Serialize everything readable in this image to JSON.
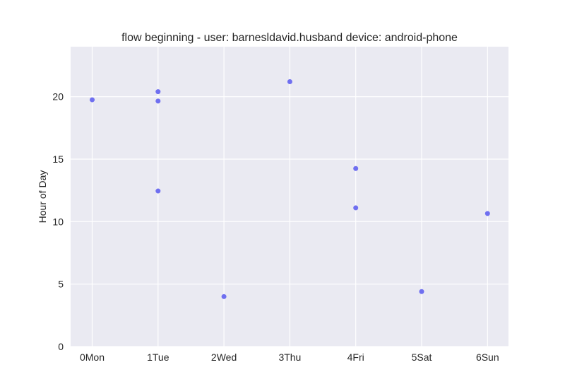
{
  "chart_data": {
    "type": "scatter",
    "title": "flow beginning - user: barnesldavid.husband device: android-phone",
    "xlabel": "",
    "ylabel": "Hour of Day",
    "x_categories": [
      "0Mon",
      "1Tue",
      "2Wed",
      "3Thu",
      "4Fri",
      "5Sat",
      "6Sun"
    ],
    "ylim": [
      0,
      24
    ],
    "yticks": [
      0,
      5,
      10,
      15,
      20
    ],
    "grid": true,
    "colors": {
      "background": "#EAEAF2",
      "grid": "#FFFFFF",
      "marker": "#6F6FF0"
    },
    "points": [
      {
        "x": 0,
        "y": 19.75
      },
      {
        "x": 1,
        "y": 20.4
      },
      {
        "x": 1,
        "y": 19.65
      },
      {
        "x": 1,
        "y": 12.45
      },
      {
        "x": 2,
        "y": 4.0
      },
      {
        "x": 3,
        "y": 21.2
      },
      {
        "x": 4,
        "y": 14.25
      },
      {
        "x": 4,
        "y": 11.1
      },
      {
        "x": 5,
        "y": 4.4
      },
      {
        "x": 6,
        "y": 10.65
      }
    ]
  }
}
